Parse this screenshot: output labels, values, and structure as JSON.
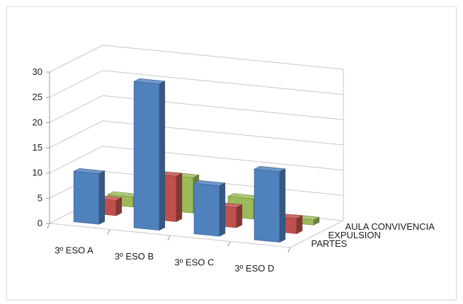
{
  "chart_data": {
    "type": "bar",
    "categories": [
      "3º ESO A",
      "3º ESO B",
      "3º ESO C",
      "3º ESO D"
    ],
    "series": [
      {
        "name": "PARTES",
        "values": [
          10,
          29,
          10,
          14
        ],
        "color": "#4f81bd"
      },
      {
        "name": "EXPULSION",
        "values": [
          3,
          9,
          4,
          3
        ],
        "color": "#c0504d"
      },
      {
        "name": "AULA CONVIVENCIA",
        "values": [
          2,
          7,
          4,
          1
        ],
        "color": "#9bbb59"
      }
    ],
    "yticks": [
      "0",
      "5",
      "10",
      "15",
      "20",
      "25",
      "30"
    ],
    "ylim": [
      0,
      30
    ],
    "title": "",
    "xlabel": "",
    "ylabel": "",
    "grid": true,
    "legend": "none"
  }
}
